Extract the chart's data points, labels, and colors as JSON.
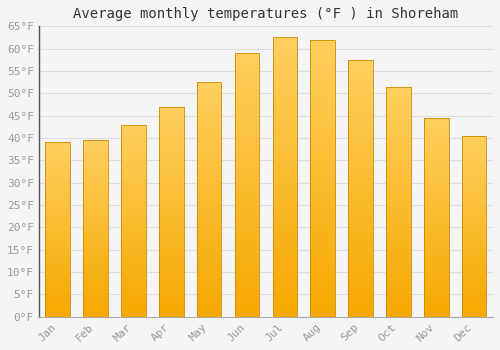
{
  "title": "Average monthly temperatures (°F ) in Shoreham",
  "months": [
    "Jan",
    "Feb",
    "Mar",
    "Apr",
    "May",
    "Jun",
    "Jul",
    "Aug",
    "Sep",
    "Oct",
    "Nov",
    "Dec"
  ],
  "values": [
    39,
    39.5,
    43,
    47,
    52.5,
    59,
    62.5,
    62,
    57.5,
    51.5,
    44.5,
    40.5
  ],
  "bar_color_top": "#FFD060",
  "bar_color_bottom": "#F5A800",
  "bar_edge_color": "#CC8800",
  "ylim": [
    0,
    65
  ],
  "yticks": [
    0,
    5,
    10,
    15,
    20,
    25,
    30,
    35,
    40,
    45,
    50,
    55,
    60,
    65
  ],
  "background_color": "#F5F5F8",
  "plot_bg_color": "#F5F5F8",
  "grid_color": "#DEDEDE",
  "title_fontsize": 10,
  "tick_fontsize": 8,
  "tick_color": "#999999",
  "axis_color": "#333333",
  "font_family": "monospace"
}
